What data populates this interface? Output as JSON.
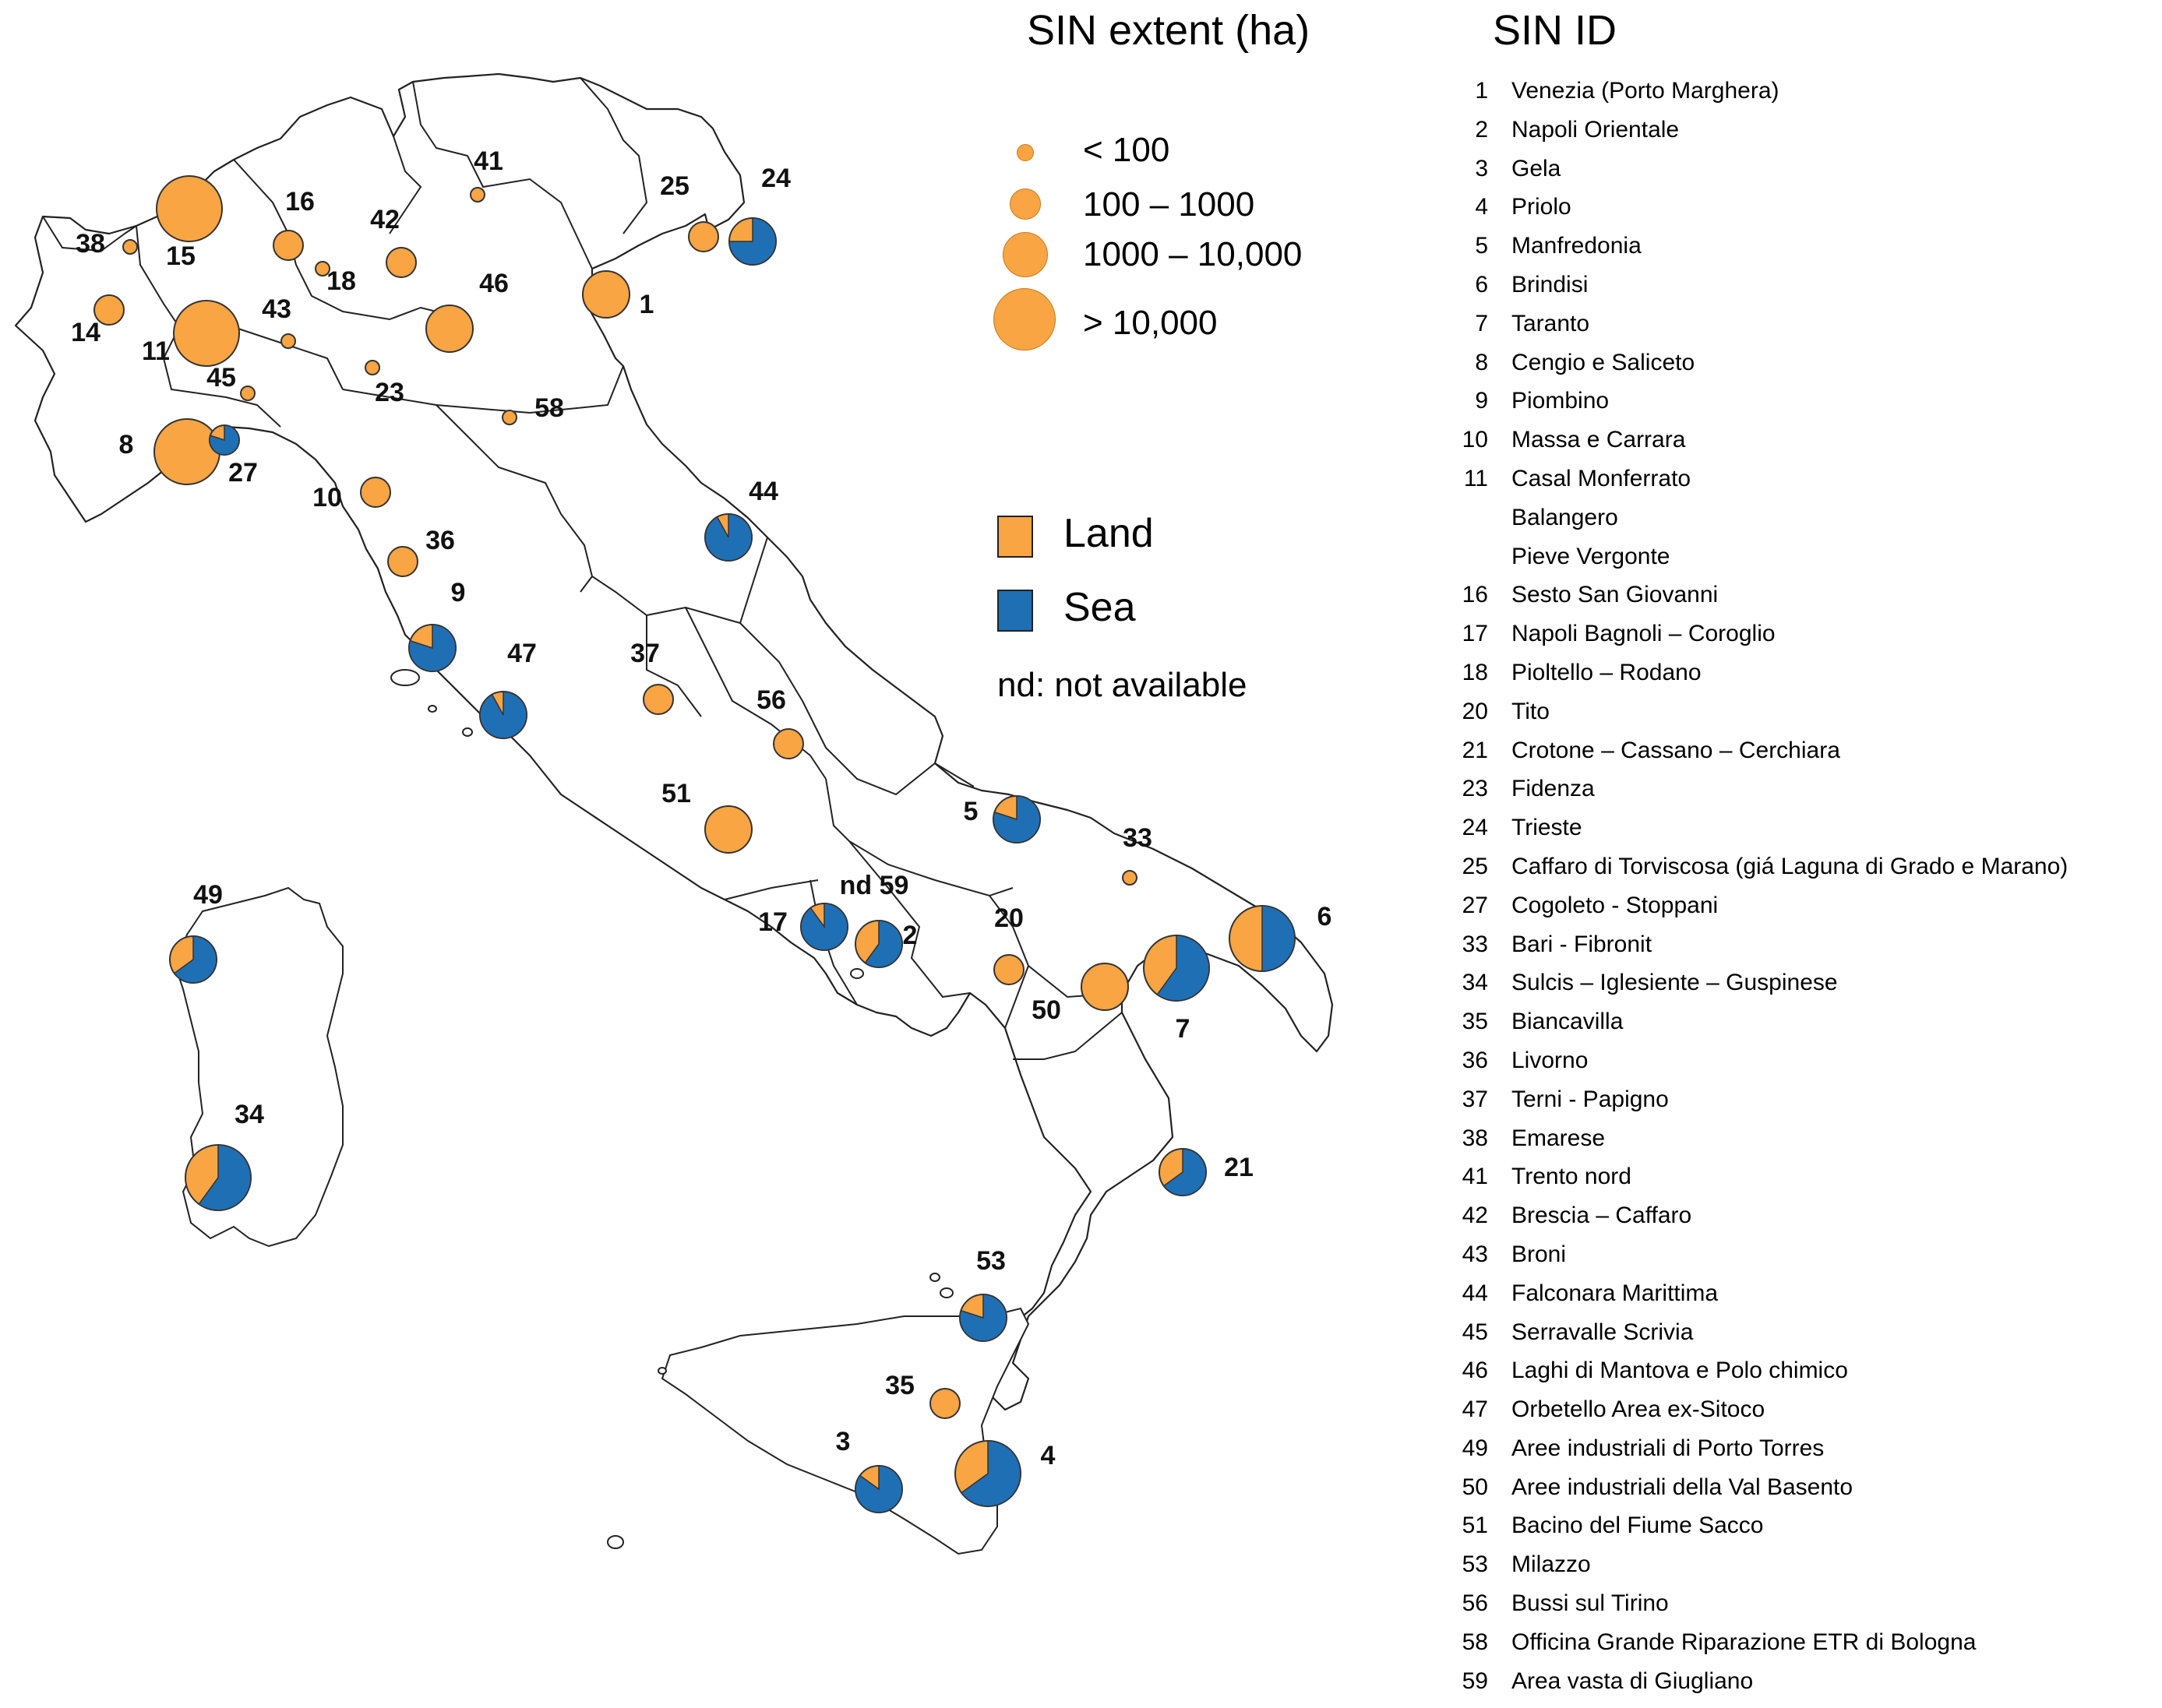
{
  "legend": {
    "extent_title": "SIN extent (ha)",
    "id_title": "SIN ID",
    "size_classes": [
      "< 100",
      "100 – 1000",
      "1000 – 10,000",
      "> 10,000"
    ],
    "land_label": "Land",
    "sea_label": "Sea",
    "nd_note": "nd: not available",
    "colors": {
      "land": "#F9A543",
      "sea": "#1F6FB5"
    }
  },
  "sites": [
    {
      "id": "1",
      "size_class": 3,
      "sea_fraction": 0
    },
    {
      "id": "2",
      "size_class": 3,
      "sea_fraction": 0.6
    },
    {
      "id": "3",
      "size_class": 3,
      "sea_fraction": 0.85
    },
    {
      "id": "4",
      "size_class": 4,
      "sea_fraction": 0.65
    },
    {
      "id": "5",
      "size_class": 3,
      "sea_fraction": 0.8
    },
    {
      "id": "6",
      "size_class": 4,
      "sea_fraction": 0.5
    },
    {
      "id": "7",
      "size_class": 4,
      "sea_fraction": 0.6
    },
    {
      "id": "8",
      "size_class": 4,
      "sea_fraction": 0
    },
    {
      "id": "9",
      "size_class": 3,
      "sea_fraction": 0.8
    },
    {
      "id": "10",
      "size_class": 2,
      "sea_fraction": 0
    },
    {
      "id": "11",
      "size_class": 4,
      "sea_fraction": 0
    },
    {
      "id": "14",
      "size_class": 2,
      "sea_fraction": 0
    },
    {
      "id": "15",
      "size_class": 4,
      "sea_fraction": 0
    },
    {
      "id": "16",
      "size_class": 2,
      "sea_fraction": 0
    },
    {
      "id": "17",
      "size_class": 3,
      "sea_fraction": 0.9
    },
    {
      "id": "18",
      "size_class": 1,
      "sea_fraction": 0
    },
    {
      "id": "20",
      "size_class": 2,
      "sea_fraction": 0
    },
    {
      "id": "21",
      "size_class": 3,
      "sea_fraction": 0.65
    },
    {
      "id": "23",
      "size_class": 1,
      "sea_fraction": 0
    },
    {
      "id": "24",
      "size_class": 3,
      "sea_fraction": 0.75
    },
    {
      "id": "25",
      "size_class": 2,
      "sea_fraction": 0
    },
    {
      "id": "27",
      "size_class": 2,
      "sea_fraction": 0.8
    },
    {
      "id": "33",
      "size_class": 1,
      "sea_fraction": 0
    },
    {
      "id": "34",
      "size_class": 4,
      "sea_fraction": 0.6
    },
    {
      "id": "35",
      "size_class": 2,
      "sea_fraction": 0
    },
    {
      "id": "36",
      "size_class": 2,
      "sea_fraction": 0
    },
    {
      "id": "37",
      "size_class": 2,
      "sea_fraction": 0
    },
    {
      "id": "38",
      "size_class": 1,
      "sea_fraction": 0
    },
    {
      "id": "41",
      "size_class": 1,
      "sea_fraction": 0
    },
    {
      "id": "42",
      "size_class": 2,
      "sea_fraction": 0
    },
    {
      "id": "43",
      "size_class": 1,
      "sea_fraction": 0
    },
    {
      "id": "44",
      "size_class": 3,
      "sea_fraction": 0.92
    },
    {
      "id": "45",
      "size_class": 1,
      "sea_fraction": 0
    },
    {
      "id": "46",
      "size_class": 3,
      "sea_fraction": 0
    },
    {
      "id": "47",
      "size_class": 3,
      "sea_fraction": 0.92
    },
    {
      "id": "49",
      "size_class": 3,
      "sea_fraction": 0.65
    },
    {
      "id": "50",
      "size_class": 3,
      "sea_fraction": 0
    },
    {
      "id": "51",
      "size_class": 3,
      "sea_fraction": 0
    },
    {
      "id": "53",
      "size_class": 3,
      "sea_fraction": 0.8
    },
    {
      "id": "56",
      "size_class": 2,
      "sea_fraction": 0
    },
    {
      "id": "58",
      "size_class": 1,
      "sea_fraction": 0
    },
    {
      "id": "nd 59",
      "size_class": 0,
      "sea_fraction": 0
    }
  ],
  "id_list": [
    {
      "num": "1",
      "name": "Venezia (Porto Marghera)"
    },
    {
      "num": "2",
      "name": "Napoli Orientale"
    },
    {
      "num": "3",
      "name": "Gela"
    },
    {
      "num": "4",
      "name": "Priolo"
    },
    {
      "num": "5",
      "name": "Manfredonia"
    },
    {
      "num": "6",
      "name": "Brindisi"
    },
    {
      "num": "7",
      "name": "Taranto"
    },
    {
      "num": "8",
      "name": "Cengio e Saliceto"
    },
    {
      "num": "9",
      "name": "Piombino"
    },
    {
      "num": "10",
      "name": "Massa e Carrara"
    },
    {
      "num": "11",
      "name": "Casal Monferrato"
    },
    {
      "num": "",
      "name": "Balangero"
    },
    {
      "num": "",
      "name": "Pieve Vergonte"
    },
    {
      "num": "16",
      "name": "Sesto San Giovanni"
    },
    {
      "num": "17",
      "name": "Napoli Bagnoli – Coroglio"
    },
    {
      "num": "18",
      "name": "Pioltello – Rodano"
    },
    {
      "num": "20",
      "name": "Tito"
    },
    {
      "num": "21",
      "name": "Crotone – Cassano – Cerchiara"
    },
    {
      "num": "23",
      "name": "Fidenza"
    },
    {
      "num": "24",
      "name": "Trieste"
    },
    {
      "num": "25",
      "name": "Caffaro di Torviscosa (giá Laguna di Grado e Marano)"
    },
    {
      "num": "27",
      "name": "Cogoleto - Stoppani"
    },
    {
      "num": "33",
      "name": "Bari - Fibronit"
    },
    {
      "num": "34",
      "name": "Sulcis – Iglesiente – Guspinese"
    },
    {
      "num": "35",
      "name": "Biancavilla"
    },
    {
      "num": "36",
      "name": "Livorno"
    },
    {
      "num": "37",
      "name": "Terni - Papigno"
    },
    {
      "num": "38",
      "name": "Emarese"
    },
    {
      "num": "41",
      "name": "Trento nord"
    },
    {
      "num": "42",
      "name": "Brescia – Caffaro"
    },
    {
      "num": "43",
      "name": "Broni"
    },
    {
      "num": "44",
      "name": "Falconara Marittima"
    },
    {
      "num": "45",
      "name": "Serravalle Scrivia"
    },
    {
      "num": "46",
      "name": "Laghi di Mantova e Polo chimico"
    },
    {
      "num": "47",
      "name": "Orbetello Area ex-Sitoco"
    },
    {
      "num": "49",
      "name": "Aree industriali di Porto Torres"
    },
    {
      "num": "50",
      "name": "Aree industriali della Val Basento"
    },
    {
      "num": "51",
      "name": "Bacino del Fiume Sacco"
    },
    {
      "num": "53",
      "name": "Milazzo"
    },
    {
      "num": "56",
      "name": "Bussi sul Tirino"
    },
    {
      "num": "58",
      "name": "Officina Grande Riparazione ETR di Bologna"
    },
    {
      "num": "59",
      "name": "Area vasta di Giugliano"
    }
  ]
}
